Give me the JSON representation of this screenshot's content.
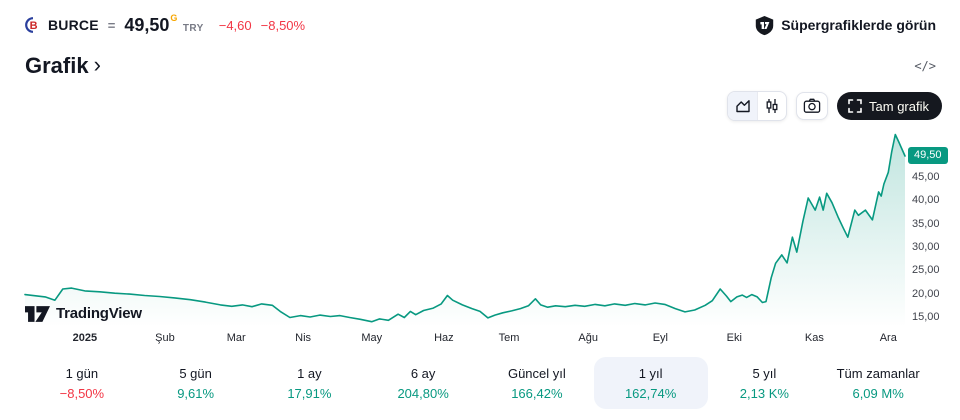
{
  "colors": {
    "accent-teal": "#089981",
    "negative-red": "#f23645",
    "text-dark": "#131722",
    "text-gray": "#787b86",
    "delayed-orange": "#f7a600",
    "selected-pill-bg": "#f0f3fa"
  },
  "header": {
    "ticker": "BURCE",
    "equals": "=",
    "price": "49,50",
    "delayed_flag": "G",
    "currency": "TRY",
    "change_abs": "−4,60",
    "change_pct": "−8,50%",
    "supercharts_label": "Süpergrafiklerde görün"
  },
  "section": {
    "title": "Grafik",
    "chevron": "›",
    "code_icon": "</>"
  },
  "toolbar": {
    "fullscreen_label": "Tam grafik"
  },
  "attribution": {
    "brand": "TradingView"
  },
  "chart_data": {
    "type": "area",
    "line_color": "#089981",
    "fill_gradient": [
      "rgba(8,153,129,0.26)",
      "rgba(8,153,129,0)"
    ],
    "ylim": [
      12.9,
      54.5
    ],
    "last_price": {
      "label": "49,50",
      "value": 49.5
    },
    "y_ticks": [
      {
        "label": "45,00",
        "value": 45
      },
      {
        "label": "40,00",
        "value": 40
      },
      {
        "label": "35,00",
        "value": 35
      },
      {
        "label": "30,00",
        "value": 30
      },
      {
        "label": "25,00",
        "value": 25
      },
      {
        "label": "20,00",
        "value": 20
      },
      {
        "label": "15,00",
        "value": 15
      }
    ],
    "x_ticks": [
      {
        "label": "2025",
        "t": 0.068,
        "bold": true
      },
      {
        "label": "Şub",
        "t": 0.159,
        "bold": false
      },
      {
        "label": "Mar",
        "t": 0.24,
        "bold": false
      },
      {
        "label": "Nis",
        "t": 0.316,
        "bold": false
      },
      {
        "label": "May",
        "t": 0.394,
        "bold": false
      },
      {
        "label": "Haz",
        "t": 0.476,
        "bold": false
      },
      {
        "label": "Tem",
        "t": 0.55,
        "bold": false
      },
      {
        "label": "Ağu",
        "t": 0.64,
        "bold": false
      },
      {
        "label": "Eyl",
        "t": 0.722,
        "bold": false
      },
      {
        "label": "Eki",
        "t": 0.806,
        "bold": false
      },
      {
        "label": "Kas",
        "t": 0.897,
        "bold": false
      },
      {
        "label": "Ara",
        "t": 0.981,
        "bold": false
      }
    ],
    "series": [
      {
        "name": "BURCE",
        "points": [
          [
            0.0,
            19.8
          ],
          [
            0.023,
            19.3
          ],
          [
            0.034,
            18.6
          ],
          [
            0.043,
            21.0
          ],
          [
            0.053,
            21.2
          ],
          [
            0.068,
            20.6
          ],
          [
            0.085,
            20.4
          ],
          [
            0.102,
            20.1
          ],
          [
            0.119,
            19.9
          ],
          [
            0.136,
            19.6
          ],
          [
            0.153,
            19.4
          ],
          [
            0.17,
            19.1
          ],
          [
            0.188,
            18.7
          ],
          [
            0.205,
            18.2
          ],
          [
            0.222,
            17.6
          ],
          [
            0.235,
            17.3
          ],
          [
            0.247,
            17.6
          ],
          [
            0.258,
            17.2
          ],
          [
            0.269,
            17.8
          ],
          [
            0.281,
            17.5
          ],
          [
            0.29,
            16.2
          ],
          [
            0.301,
            14.9
          ],
          [
            0.313,
            15.3
          ],
          [
            0.324,
            15.0
          ],
          [
            0.335,
            15.4
          ],
          [
            0.347,
            15.1
          ],
          [
            0.358,
            15.3
          ],
          [
            0.369,
            14.9
          ],
          [
            0.381,
            14.5
          ],
          [
            0.394,
            14.0
          ],
          [
            0.403,
            14.6
          ],
          [
            0.413,
            14.3
          ],
          [
            0.424,
            15.6
          ],
          [
            0.431,
            14.9
          ],
          [
            0.438,
            16.2
          ],
          [
            0.444,
            15.5
          ],
          [
            0.453,
            16.4
          ],
          [
            0.464,
            16.9
          ],
          [
            0.473,
            17.8
          ],
          [
            0.48,
            19.6
          ],
          [
            0.486,
            18.6
          ],
          [
            0.497,
            17.6
          ],
          [
            0.508,
            16.8
          ],
          [
            0.517,
            16.2
          ],
          [
            0.526,
            14.8
          ],
          [
            0.534,
            15.4
          ],
          [
            0.543,
            15.9
          ],
          [
            0.553,
            16.3
          ],
          [
            0.563,
            16.8
          ],
          [
            0.572,
            17.4
          ],
          [
            0.58,
            18.9
          ],
          [
            0.586,
            17.6
          ],
          [
            0.594,
            17.1
          ],
          [
            0.603,
            17.4
          ],
          [
            0.614,
            17.2
          ],
          [
            0.625,
            17.5
          ],
          [
            0.636,
            17.3
          ],
          [
            0.648,
            17.7
          ],
          [
            0.659,
            17.4
          ],
          [
            0.67,
            17.8
          ],
          [
            0.682,
            17.5
          ],
          [
            0.693,
            17.9
          ],
          [
            0.705,
            17.6
          ],
          [
            0.716,
            18.0
          ],
          [
            0.727,
            17.7
          ],
          [
            0.739,
            16.8
          ],
          [
            0.75,
            16.1
          ],
          [
            0.761,
            16.5
          ],
          [
            0.773,
            17.5
          ],
          [
            0.781,
            18.5
          ],
          [
            0.79,
            21.0
          ],
          [
            0.797,
            19.5
          ],
          [
            0.802,
            18.3
          ],
          [
            0.809,
            19.3
          ],
          [
            0.815,
            19.7
          ],
          [
            0.82,
            19.2
          ],
          [
            0.826,
            19.8
          ],
          [
            0.832,
            19.3
          ],
          [
            0.838,
            18.1
          ],
          [
            0.842,
            18.3
          ],
          [
            0.848,
            23.4
          ],
          [
            0.853,
            26.5
          ],
          [
            0.86,
            28.3
          ],
          [
            0.866,
            26.6
          ],
          [
            0.872,
            32.1
          ],
          [
            0.877,
            28.9
          ],
          [
            0.884,
            35.5
          ],
          [
            0.89,
            40.5
          ],
          [
            0.898,
            37.9
          ],
          [
            0.903,
            40.7
          ],
          [
            0.907,
            37.9
          ],
          [
            0.911,
            41.5
          ],
          [
            0.917,
            39.5
          ],
          [
            0.924,
            36.4
          ],
          [
            0.93,
            34.0
          ],
          [
            0.935,
            32.1
          ],
          [
            0.943,
            37.9
          ],
          [
            0.947,
            36.8
          ],
          [
            0.955,
            37.9
          ],
          [
            0.963,
            35.8
          ],
          [
            0.97,
            41.8
          ],
          [
            0.973,
            40.9
          ],
          [
            0.976,
            43.5
          ],
          [
            0.981,
            46.0
          ],
          [
            0.985,
            50.5
          ],
          [
            0.989,
            54.1
          ],
          [
            0.993,
            52.5
          ],
          [
            1.0,
            49.5
          ]
        ]
      }
    ]
  },
  "periods": {
    "items": [
      {
        "label": "1 gün",
        "pct": "−8,50%",
        "negative": true,
        "selected": false
      },
      {
        "label": "5 gün",
        "pct": "9,61%",
        "negative": false,
        "selected": false
      },
      {
        "label": "1 ay",
        "pct": "17,91%",
        "negative": false,
        "selected": false
      },
      {
        "label": "6 ay",
        "pct": "204,80%",
        "negative": false,
        "selected": false
      },
      {
        "label": "Güncel yıl",
        "pct": "166,42%",
        "negative": false,
        "selected": false
      },
      {
        "label": "1 yıl",
        "pct": "162,74%",
        "negative": false,
        "selected": true
      },
      {
        "label": "5 yıl",
        "pct": "2,13 K%",
        "negative": false,
        "selected": false
      },
      {
        "label": "Tüm zamanlar",
        "pct": "6,09 M%",
        "negative": false,
        "selected": false
      }
    ]
  }
}
